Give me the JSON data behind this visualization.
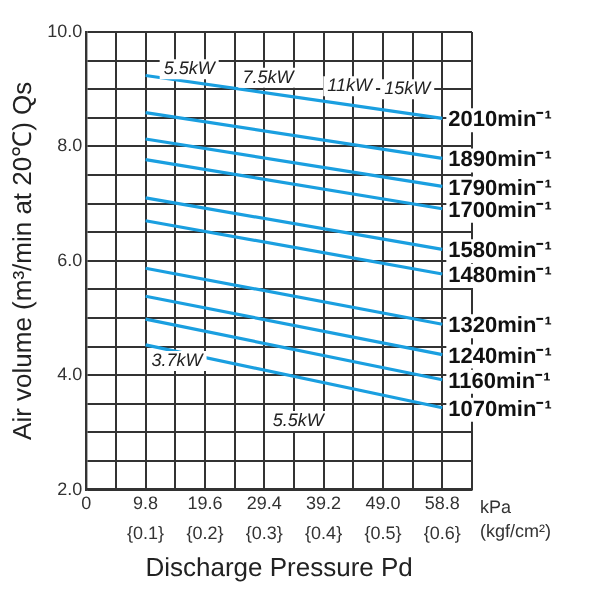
{
  "chart_data": {
    "type": "line",
    "xlabel": "Discharge Pressure Pd",
    "ylabel": "Air volume (m³/min at 20℃) Qs",
    "x": [
      9.8,
      58.8
    ],
    "series": [
      {
        "name": "2010min⁻¹",
        "color": "#1a9fe0",
        "values": [
          9.24,
          8.49
        ]
      },
      {
        "name": "1890min⁻¹",
        "color": "#1a9fe0",
        "values": [
          8.59,
          7.79
        ]
      },
      {
        "name": "1790min⁻¹",
        "color": "#1a9fe0",
        "values": [
          8.13,
          7.3
        ]
      },
      {
        "name": "1700min⁻¹",
        "color": "#1a9fe0",
        "values": [
          7.77,
          6.91
        ]
      },
      {
        "name": "1580min⁻¹",
        "color": "#1a9fe0",
        "values": [
          7.1,
          6.2
        ]
      },
      {
        "name": "1480min⁻¹",
        "color": "#1a9fe0",
        "values": [
          6.7,
          5.77
        ]
      },
      {
        "name": "1320min⁻¹",
        "color": "#1a9fe0",
        "values": [
          5.87,
          4.89
        ]
      },
      {
        "name": "1240min⁻¹",
        "color": "#1a9fe0",
        "values": [
          5.38,
          4.36
        ]
      },
      {
        "name": "1160min⁻¹",
        "color": "#1a9fe0",
        "values": [
          4.98,
          3.92
        ]
      },
      {
        "name": "1070min⁻¹",
        "color": "#1a9fe0",
        "values": [
          4.53,
          3.43
        ]
      }
    ],
    "xlim": [
      0,
      63.7
    ],
    "xticks": [
      0,
      {
        "value": 4.9,
        "label": null
      },
      9.8,
      {
        "value": 14.7,
        "label": null
      },
      19.6,
      {
        "value": 24.5,
        "label": null
      },
      29.4,
      {
        "value": 34.3,
        "label": null
      },
      39.2,
      {
        "value": 44.1,
        "label": null
      },
      {
        "value": 49.0,
        "label": "49.0"
      },
      {
        "value": 53.9,
        "label": null
      },
      58.8,
      {
        "value": 63.7,
        "label": null
      }
    ],
    "x2lim": [
      0,
      0.65
    ],
    "x2ticks": [
      {
        "value": 0.1,
        "label": "{0.1}"
      },
      {
        "value": 0.2,
        "label": "{0.2}"
      },
      {
        "value": 0.3,
        "label": "{0.3}"
      },
      {
        "value": 0.4,
        "label": "{0.4}"
      },
      {
        "value": 0.5,
        "label": "{0.5}"
      },
      {
        "value": 0.6,
        "label": "{0.6}"
      }
    ],
    "ylim": [
      2,
      10
    ],
    "yticks": [
      {
        "value": 2,
        "label": "2.0"
      },
      {
        "value": 2.5,
        "label": null
      },
      {
        "value": 3,
        "label": null
      },
      {
        "value": 3.5,
        "label": null
      },
      {
        "value": 4,
        "label": "4.0"
      },
      {
        "value": 4.5,
        "label": null
      },
      {
        "value": 5,
        "label": null
      },
      {
        "value": 5.5,
        "label": null
      },
      {
        "value": 6,
        "label": "6.0"
      },
      {
        "value": 6.5,
        "label": null
      },
      {
        "value": 7,
        "label": null
      },
      {
        "value": 7.5,
        "label": null
      },
      {
        "value": 8,
        "label": "8.0"
      },
      {
        "value": 8.5,
        "label": null
      },
      {
        "value": 9,
        "label": null
      },
      {
        "value": 9.5,
        "label": null
      },
      {
        "value": 10,
        "label": "10.0"
      }
    ],
    "grid": true,
    "legend": false,
    "marker": "none",
    "line_style": "solid",
    "annotations": [
      {
        "text": "5.5kW",
        "x": 17,
        "y": 9.35
      },
      {
        "text": "7.5kW",
        "x": 30,
        "y": 9.2
      },
      {
        "text": "11kW",
        "x": 43.5,
        "y": 9.05
      },
      {
        "text": "15kW",
        "x": 53,
        "y": 9.0
      },
      {
        "text": "3.7kW",
        "x": 15,
        "y": 4.25
      },
      {
        "text": "5.5kW",
        "x": 35,
        "y": 3.2
      },
      "kPa",
      "(kgf/cm²)"
    ]
  }
}
